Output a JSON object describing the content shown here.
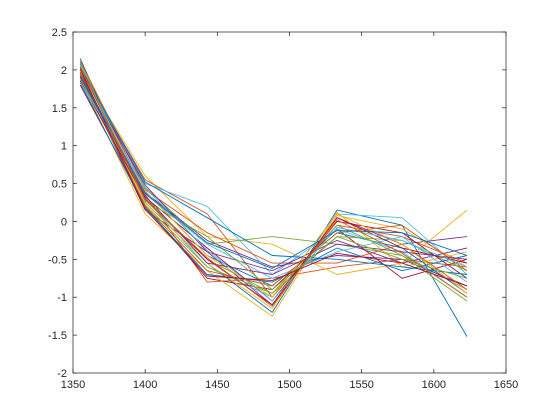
{
  "chart_data": {
    "type": "line",
    "title": "",
    "xlabel": "",
    "ylabel": "",
    "xlim": [
      1350,
      1650
    ],
    "ylim": [
      -2,
      2.5
    ],
    "xticks": [
      1350,
      1400,
      1450,
      1500,
      1550,
      1600,
      1650
    ],
    "yticks": [
      -2,
      -1.5,
      -1,
      -0.5,
      0,
      0.5,
      1,
      1.5,
      2,
      2.5
    ],
    "xtick_labels": [
      "1350",
      "1400",
      "1450",
      "1500",
      "1550",
      "1600",
      "1650"
    ],
    "ytick_labels": [
      "-2",
      "-1.5",
      "-1",
      "-0.5",
      "0",
      "0.5",
      "1",
      "1.5",
      "2",
      "2.5"
    ],
    "grid": false,
    "box": true,
    "x": [
      1355,
      1400,
      1443,
      1488,
      1533,
      1578,
      1623
    ],
    "color_order": [
      "#0072BD",
      "#D95319",
      "#EDB120",
      "#7E2F8E",
      "#77AC30",
      "#4DBEEE",
      "#A2142F"
    ],
    "series": [
      {
        "values": [
          2.15,
          0.25,
          -0.55,
          -1.2,
          0.15,
          -0.05,
          -1.52
        ]
      },
      {
        "values": [
          1.85,
          0.35,
          -0.8,
          -0.75,
          -0.6,
          -0.5,
          -0.6
        ]
      },
      {
        "values": [
          2.0,
          0.6,
          -0.2,
          -0.3,
          -0.7,
          -0.55,
          0.15
        ]
      },
      {
        "values": [
          1.95,
          0.15,
          -0.4,
          -1.1,
          0.05,
          -0.3,
          -0.2
        ]
      },
      {
        "values": [
          2.05,
          0.45,
          -0.3,
          -0.2,
          -0.3,
          -0.45,
          -0.9
        ]
      },
      {
        "values": [
          2.1,
          0.3,
          -0.6,
          -1.0,
          0.1,
          0.05,
          -0.7
        ]
      },
      {
        "values": [
          1.8,
          0.2,
          -0.75,
          -0.9,
          -0.1,
          -0.75,
          -0.5
        ]
      },
      {
        "values": [
          1.9,
          0.4,
          -0.45,
          -0.85,
          -0.15,
          -0.35,
          -0.95
        ]
      },
      {
        "values": [
          2.0,
          0.55,
          0.1,
          -1.0,
          -0.05,
          -0.2,
          -0.55
        ]
      },
      {
        "values": [
          1.88,
          0.1,
          -0.65,
          -1.25,
          0.12,
          -0.6,
          -0.4
        ]
      },
      {
        "values": [
          2.08,
          0.38,
          -0.25,
          -0.6,
          -0.45,
          -0.5,
          -0.85
        ]
      },
      {
        "values": [
          1.92,
          0.28,
          -0.5,
          -0.95,
          -0.2,
          -0.25,
          -0.65
        ]
      },
      {
        "values": [
          2.02,
          0.5,
          0.2,
          -0.7,
          -0.1,
          -0.4,
          -1.0
        ]
      },
      {
        "values": [
          1.97,
          0.32,
          -0.35,
          -1.05,
          0.0,
          -0.15,
          -0.75
        ]
      },
      {
        "values": [
          1.83,
          0.18,
          -0.7,
          -0.8,
          -0.35,
          -0.65,
          -0.45
        ]
      },
      {
        "values": [
          2.12,
          0.42,
          -0.15,
          -0.55,
          -0.55,
          -0.3,
          -0.9
        ]
      },
      {
        "values": [
          1.94,
          0.25,
          -0.55,
          -1.15,
          0.08,
          -0.1,
          -0.6
        ]
      },
      {
        "values": [
          2.0,
          0.48,
          -0.4,
          -0.65,
          -0.25,
          -0.55,
          -0.35
        ]
      },
      {
        "values": [
          1.9,
          0.22,
          -0.6,
          -0.95,
          -0.05,
          -0.45,
          -1.05
        ]
      },
      {
        "values": [
          2.06,
          0.36,
          -0.3,
          -0.75,
          -0.4,
          -0.2,
          -0.8
        ]
      },
      {
        "values": [
          1.86,
          0.3,
          -0.5,
          -1.1,
          0.05,
          -0.35,
          -0.55
        ]
      },
      {
        "values": [
          2.03,
          0.52,
          0.05,
          -0.45,
          -0.5,
          -0.6,
          -0.7
        ]
      },
      {
        "values": [
          1.96,
          0.2,
          -0.65,
          -0.85,
          -0.15,
          -0.05,
          -0.65
        ]
      },
      {
        "values": [
          1.99,
          0.4,
          -0.45,
          -1.0,
          0.1,
          -0.3,
          -0.95
        ]
      },
      {
        "values": [
          1.91,
          0.34,
          -0.55,
          -0.7,
          -0.3,
          -0.4,
          -0.5
        ]
      },
      {
        "values": [
          2.09,
          0.27,
          -0.2,
          -0.9,
          -0.2,
          -0.5,
          -0.75
        ]
      },
      {
        "values": [
          1.84,
          0.44,
          -0.38,
          -1.05,
          -0.08,
          -0.25,
          -0.6
        ]
      },
      {
        "values": [
          2.01,
          0.16,
          -0.72,
          -0.78,
          -0.42,
          -0.55,
          -0.85
        ]
      },
      {
        "values": [
          1.93,
          0.37,
          -0.28,
          -0.62,
          -0.12,
          -0.15,
          -0.45
        ]
      },
      {
        "values": [
          2.04,
          0.29,
          -0.48,
          -1.12,
          0.02,
          -0.42,
          -1.0
        ]
      }
    ]
  }
}
